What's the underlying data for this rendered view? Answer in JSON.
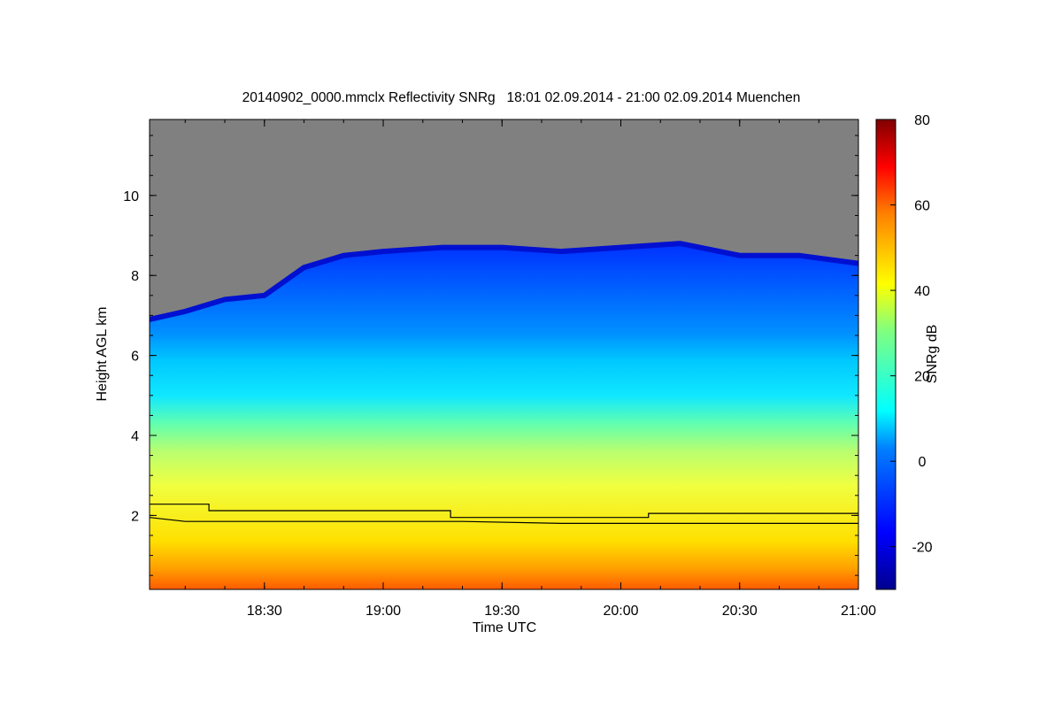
{
  "chart_data": {
    "type": "heatmap",
    "title": "20140902_0000.mmclx Reflectivity SNRg   18:01 02.09.2014 - 21:00 02.09.2014 Muenchen",
    "xlabel": "Time UTC",
    "ylabel": "Height AGL km",
    "xlim": [
      "18:01",
      "21:00"
    ],
    "ylim": [
      0.15,
      11.9
    ],
    "x_ticks": [
      "18:30",
      "19:00",
      "19:30",
      "20:00",
      "20:30",
      "21:00"
    ],
    "y_ticks": [
      2,
      4,
      6,
      8,
      10
    ],
    "colorbar": {
      "label": "SNRg dB",
      "range": [
        -30,
        80
      ],
      "ticks": [
        -20,
        0,
        20,
        40,
        60,
        80
      ],
      "colormap": "jet"
    },
    "no_data_color": "#808080",
    "field_description": "Signal-to-noise ratio; strongest near ground (about 50-60 dB), decreasing with height to below 0 dB near cloud top",
    "cloud_top_km": [
      {
        "time": "18:01",
        "height": 6.9
      },
      {
        "time": "18:10",
        "height": 7.1
      },
      {
        "time": "18:20",
        "height": 7.4
      },
      {
        "time": "18:30",
        "height": 7.5
      },
      {
        "time": "18:40",
        "height": 8.2
      },
      {
        "time": "18:50",
        "height": 8.5
      },
      {
        "time": "19:00",
        "height": 8.6
      },
      {
        "time": "19:15",
        "height": 8.7
      },
      {
        "time": "19:30",
        "height": 8.7
      },
      {
        "time": "19:45",
        "height": 8.6
      },
      {
        "time": "20:00",
        "height": 8.7
      },
      {
        "time": "20:15",
        "height": 8.8
      },
      {
        "time": "20:30",
        "height": 8.5
      },
      {
        "time": "20:45",
        "height": 8.5
      },
      {
        "time": "21:00",
        "height": 8.3
      }
    ],
    "series": [
      {
        "x": [
          "18:01",
          "18:16",
          "18:16",
          "19:17",
          "19:17",
          "20:07",
          "20:07",
          "21:00"
        ],
        "y": [
          2.28,
          2.28,
          2.12,
          2.12,
          1.95,
          1.95,
          2.05,
          2.05
        ],
        "color": "#000000"
      },
      {
        "x": [
          "18:01",
          "18:10",
          "18:30",
          "19:00",
          "19:20",
          "19:45",
          "20:00",
          "20:30",
          "21:00"
        ],
        "y": [
          1.95,
          1.85,
          1.85,
          1.85,
          1.85,
          1.8,
          1.8,
          1.8,
          1.8
        ],
        "color": "#000000"
      }
    ]
  }
}
